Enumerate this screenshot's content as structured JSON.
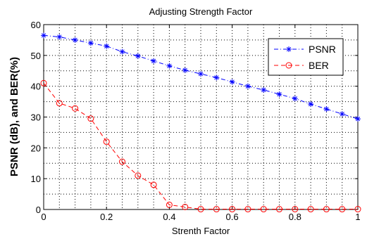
{
  "chart_data": {
    "type": "line",
    "title": "Adjusting Strength Factor",
    "xlabel": "Strenth Factor",
    "ylabel": "PSNR (dB), and BER(%)",
    "xlim": [
      0,
      1
    ],
    "ylim": [
      0,
      60
    ],
    "xticks": [
      "0",
      "0.2",
      "0.4",
      "0.6",
      "0.8",
      "1"
    ],
    "yticks": [
      "0",
      "10",
      "20",
      "30",
      "40",
      "50",
      "60"
    ],
    "grid": true,
    "legend_position": "top-right",
    "x": [
      0,
      0.05,
      0.1,
      0.15,
      0.2,
      0.25,
      0.3,
      0.35,
      0.4,
      0.45,
      0.5,
      0.55,
      0.6,
      0.65,
      0.7,
      0.75,
      0.8,
      0.85,
      0.9,
      0.95,
      1.0
    ],
    "series": [
      {
        "name": "PSNR",
        "color": "#0000ff",
        "marker": "star",
        "line_style": "dash-dot",
        "values": [
          56.5,
          56,
          55,
          54,
          53,
          51.2,
          49.8,
          48.2,
          46.6,
          45.2,
          44,
          42.8,
          41.4,
          40,
          38.8,
          37.4,
          36,
          34.2,
          32.6,
          31,
          29.4
        ]
      },
      {
        "name": "BER",
        "color": "#ff0000",
        "marker": "circle",
        "line_style": "dash",
        "values": [
          41,
          34.5,
          32.8,
          29.5,
          22,
          15.5,
          11,
          8,
          1.5,
          0.8,
          0.1,
          0.1,
          0.1,
          0.1,
          0.1,
          0.1,
          0.1,
          0.1,
          0.1,
          0.1,
          0.1
        ]
      }
    ]
  }
}
